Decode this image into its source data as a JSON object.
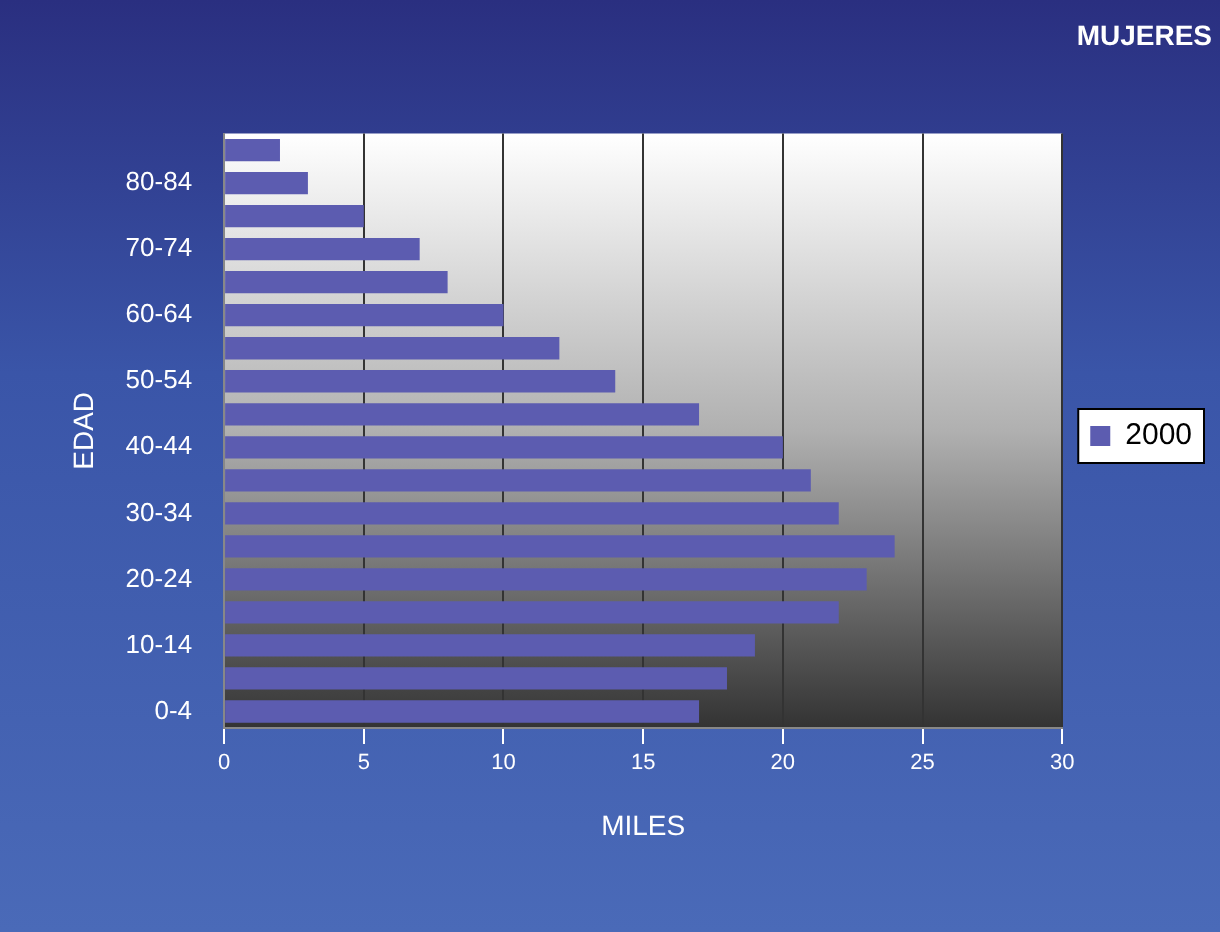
{
  "chart_data": {
    "type": "bar",
    "orientation": "horizontal",
    "title": "MUJERES",
    "xlabel": "MILES",
    "ylabel": "EDAD",
    "categories": [
      null,
      "80-84",
      null,
      "70-74",
      null,
      "60-64",
      null,
      "50-54",
      null,
      "40-44",
      null,
      "30-34",
      null,
      "20-24",
      null,
      "10-14",
      null,
      "0-4"
    ],
    "series": [
      {
        "name": "2000",
        "color": "#5c5cb0",
        "values": [
          2,
          3,
          5,
          7,
          8,
          10,
          12,
          14,
          17,
          20,
          21,
          22,
          24,
          23,
          22,
          19,
          18,
          17
        ]
      }
    ],
    "xlim": [
      0,
      30
    ],
    "xticks": [
      0,
      5,
      10,
      15,
      20,
      25,
      30
    ],
    "grid": "x",
    "legend": "right"
  }
}
